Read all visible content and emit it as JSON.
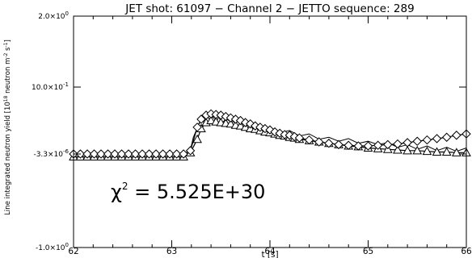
{
  "chart_data": {
    "type": "line",
    "title": "JET shot: 61097 − Channel 2 − JETTO sequence: 289",
    "xlabel": "t [s]",
    "ylabel": "Line integrated neutron yield [10¹⁸ neutron m⁻² s⁻¹]",
    "ylabel_parts": {
      "a": "Line integrated neutron yield [10",
      "b": "18",
      "c": " neutron m",
      "d": "-2",
      "e": " s",
      "f": "-1",
      "g": "]"
    },
    "xlim": [
      62,
      66
    ],
    "ylim": [
      -1.0,
      2.0
    ],
    "x_ticks": [
      {
        "value": 62,
        "label": "62"
      },
      {
        "value": 63,
        "label": "63"
      },
      {
        "value": 64,
        "label": "64"
      },
      {
        "value": 65,
        "label": "65"
      },
      {
        "value": 66,
        "label": "66"
      }
    ],
    "y_ticks": [
      {
        "value": 2.0,
        "mant": "2.0×10",
        "exp": "0"
      },
      {
        "value": 1.0,
        "mant": "10.0×10",
        "exp": "-1"
      },
      {
        "value": -3.3e-06,
        "mant": "-3.3×10",
        "exp": "-6"
      },
      {
        "value": -1.0,
        "mant": "-1.0×10",
        "exp": "0"
      }
    ],
    "annotation": {
      "chi": "χ",
      "sup": "2",
      "rest": " =  5.525E+30"
    },
    "grid": false,
    "series": [
      {
        "marker": "none",
        "x": [
          62.0,
          62.5,
          63.0,
          63.18,
          63.22,
          63.27,
          63.3,
          63.33,
          63.36,
          63.39,
          63.42,
          63.45,
          63.48,
          63.51,
          63.55,
          63.6,
          63.65,
          63.7,
          63.75,
          63.8,
          63.85,
          63.9,
          63.95,
          64.0,
          64.1,
          64.2,
          64.3,
          64.4,
          64.5,
          64.6,
          64.7,
          64.8,
          64.9,
          65.0,
          65.1,
          65.2,
          65.3,
          65.4,
          65.5,
          65.6,
          65.7,
          65.8,
          65.9,
          66.0
        ],
        "y": [
          0.0,
          0.0,
          0.0,
          0.0,
          0.25,
          0.42,
          0.52,
          0.47,
          0.58,
          0.5,
          0.56,
          0.48,
          0.55,
          0.46,
          0.52,
          0.49,
          0.47,
          0.51,
          0.44,
          0.46,
          0.41,
          0.43,
          0.38,
          0.4,
          0.32,
          0.35,
          0.27,
          0.3,
          0.22,
          0.25,
          0.19,
          0.23,
          0.16,
          0.19,
          0.14,
          0.17,
          0.1,
          0.14,
          0.07,
          0.12,
          0.05,
          0.1,
          0.04,
          0.09
        ]
      },
      {
        "marker": "triangle",
        "x": [
          62.0,
          62.07,
          62.14,
          62.21,
          62.28,
          62.35,
          62.42,
          62.49,
          62.56,
          62.63,
          62.7,
          62.77,
          62.84,
          62.91,
          62.98,
          63.05,
          63.12,
          63.19,
          63.26,
          63.3,
          63.35,
          63.4,
          63.45,
          63.5,
          63.55,
          63.6,
          63.65,
          63.7,
          63.75,
          63.8,
          63.85,
          63.9,
          63.95,
          64.0,
          64.05,
          64.1,
          64.15,
          64.2,
          64.25,
          64.3,
          64.4,
          64.5,
          64.6,
          64.7,
          64.8,
          64.9,
          65.0,
          65.1,
          65.2,
          65.3,
          65.4,
          65.5,
          65.6,
          65.7,
          65.8,
          65.9,
          66.0
        ],
        "y": [
          -0.03,
          -0.03,
          -0.03,
          -0.03,
          -0.03,
          -0.03,
          -0.03,
          -0.03,
          -0.03,
          -0.03,
          -0.03,
          -0.03,
          -0.03,
          -0.03,
          -0.03,
          -0.03,
          -0.03,
          0.02,
          0.22,
          0.38,
          0.47,
          0.5,
          0.48,
          0.47,
          0.46,
          0.45,
          0.43,
          0.42,
          0.4,
          0.38,
          0.37,
          0.35,
          0.33,
          0.32,
          0.3,
          0.28,
          0.27,
          0.25,
          0.24,
          0.22,
          0.2,
          0.18,
          0.16,
          0.14,
          0.12,
          0.11,
          0.09,
          0.08,
          0.07,
          0.06,
          0.05,
          0.05,
          0.04,
          0.03,
          0.03,
          0.02,
          0.02
        ]
      },
      {
        "marker": "diamond",
        "x": [
          62.0,
          62.07,
          62.14,
          62.21,
          62.28,
          62.35,
          62.42,
          62.49,
          62.56,
          62.63,
          62.7,
          62.77,
          62.84,
          62.91,
          62.98,
          63.05,
          63.12,
          63.19,
          63.26,
          63.3,
          63.35,
          63.4,
          63.45,
          63.5,
          63.55,
          63.6,
          63.65,
          63.7,
          63.75,
          63.8,
          63.85,
          63.9,
          63.95,
          64.0,
          64.05,
          64.1,
          64.15,
          64.2,
          64.25,
          64.3,
          64.4,
          64.5,
          64.6,
          64.7,
          64.8,
          64.9,
          65.0,
          65.1,
          65.2,
          65.3,
          65.4,
          65.5,
          65.6,
          65.7,
          65.8,
          65.9,
          66.0
        ],
        "y": [
          0.0,
          0.0,
          0.0,
          0.0,
          0.0,
          0.0,
          0.0,
          0.0,
          0.0,
          0.0,
          0.0,
          0.0,
          0.0,
          0.0,
          0.0,
          0.0,
          0.0,
          0.05,
          0.4,
          0.52,
          0.58,
          0.6,
          0.59,
          0.58,
          0.56,
          0.54,
          0.52,
          0.5,
          0.47,
          0.45,
          0.42,
          0.4,
          0.38,
          0.36,
          0.33,
          0.31,
          0.29,
          0.28,
          0.26,
          0.24,
          0.21,
          0.18,
          0.16,
          0.14,
          0.13,
          0.12,
          0.12,
          0.13,
          0.14,
          0.15,
          0.17,
          0.19,
          0.21,
          0.23,
          0.25,
          0.28,
          0.3
        ]
      }
    ]
  }
}
